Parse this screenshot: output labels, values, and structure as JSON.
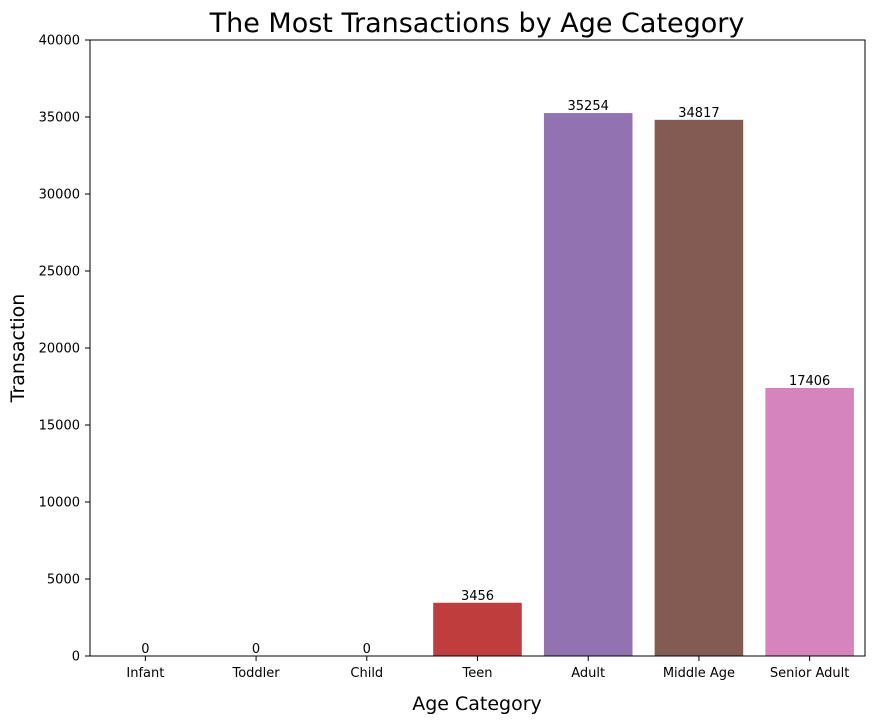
{
  "chart_data": {
    "type": "bar",
    "title": "The Most Transactions by Age Category",
    "xlabel": "Age Category",
    "ylabel": "Transaction",
    "categories": [
      "Infant",
      "Toddler",
      "Child",
      "Teen",
      "Adult",
      "Middle Age",
      "Senior Adult"
    ],
    "values": [
      0,
      0,
      0,
      3456,
      35254,
      34817,
      17406
    ],
    "data_labels": [
      "0",
      "0",
      "0",
      "3456",
      "35254",
      "34817",
      "17406"
    ],
    "colors": [
      "#1f77b4",
      "#ff7f0e",
      "#2ca02c",
      "#c03d3e",
      "#9372b2",
      "#845b53",
      "#d684bd"
    ],
    "ylim": [
      0,
      40000
    ],
    "yticks": [
      0,
      5000,
      10000,
      15000,
      20000,
      25000,
      30000,
      35000,
      40000
    ],
    "ytick_labels": [
      "0",
      "5000",
      "10000",
      "15000",
      "20000",
      "25000",
      "30000",
      "35000",
      "40000"
    ],
    "grid": false,
    "legend": "none"
  }
}
